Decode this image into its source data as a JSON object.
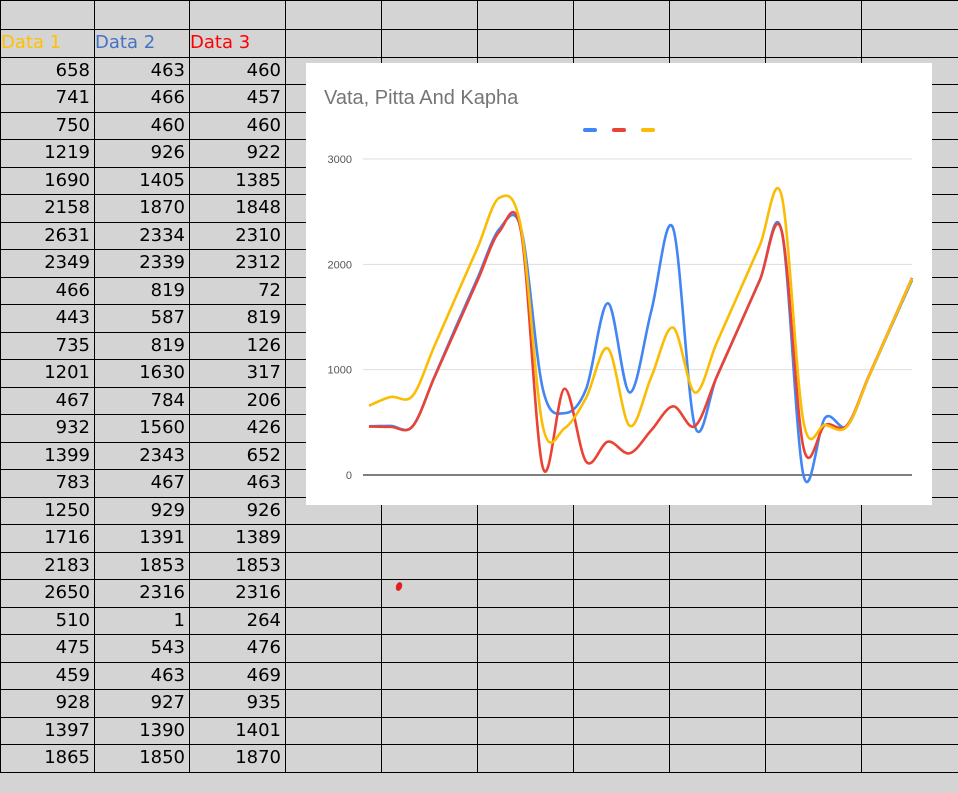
{
  "sheet": {
    "headers": [
      "Data 1",
      "Data 2",
      "Data 3"
    ],
    "header_colors": [
      "#ffc000",
      "#4472c4",
      "#ff0000"
    ],
    "rows": [
      [
        658,
        463,
        460
      ],
      [
        741,
        466,
        457
      ],
      [
        750,
        460,
        460
      ],
      [
        1219,
        926,
        922
      ],
      [
        1690,
        1405,
        1385
      ],
      [
        2158,
        1870,
        1848
      ],
      [
        2631,
        2334,
        2310
      ],
      [
        2349,
        2339,
        2312
      ],
      [
        466,
        819,
        72
      ],
      [
        443,
        587,
        819
      ],
      [
        735,
        819,
        126
      ],
      [
        1201,
        1630,
        317
      ],
      [
        467,
        784,
        206
      ],
      [
        932,
        1560,
        426
      ],
      [
        1399,
        2343,
        652
      ],
      [
        783,
        467,
        463
      ],
      [
        1250,
        929,
        926
      ],
      [
        1716,
        1391,
        1389
      ],
      [
        2183,
        1853,
        1853
      ],
      [
        2650,
        2316,
        2316
      ],
      [
        510,
        1,
        264
      ],
      [
        475,
        543,
        476
      ],
      [
        459,
        463,
        469
      ],
      [
        928,
        927,
        935
      ],
      [
        1397,
        1390,
        1401
      ],
      [
        1865,
        1850,
        1870
      ]
    ]
  },
  "chart_data": {
    "type": "line",
    "title": "Vata, Pitta And Kapha",
    "xlabel": "",
    "ylabel": "",
    "ylim": [
      0,
      3000
    ],
    "yticks": [
      0,
      1000,
      2000,
      3000
    ],
    "grid": true,
    "legend": "top-center",
    "series": [
      {
        "color": "#4285f4",
        "values": [
          463,
          466,
          460,
          926,
          1405,
          1870,
          2334,
          2339,
          819,
          587,
          819,
          1630,
          784,
          1560,
          2343,
          467,
          929,
          1391,
          1853,
          2316,
          1,
          543,
          463,
          927,
          1390,
          1850
        ]
      },
      {
        "color": "#ea4335",
        "values": [
          460,
          457,
          460,
          922,
          1385,
          1848,
          2310,
          2312,
          72,
          819,
          126,
          317,
          206,
          426,
          652,
          463,
          926,
          1389,
          1853,
          2316,
          264,
          476,
          469,
          935,
          1401,
          1870
        ]
      },
      {
        "color": "#fbbc04",
        "values": [
          658,
          741,
          750,
          1219,
          1690,
          2158,
          2631,
          2349,
          466,
          443,
          735,
          1201,
          467,
          932,
          1399,
          783,
          1250,
          1716,
          2183,
          2650,
          510,
          475,
          459,
          928,
          1397,
          1865
        ]
      }
    ]
  }
}
